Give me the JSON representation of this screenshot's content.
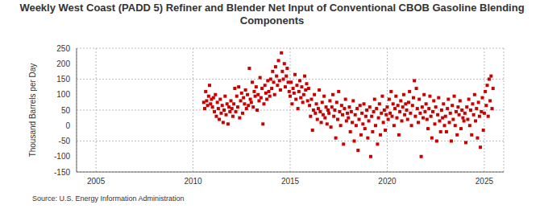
{
  "chart_data": {
    "type": "scatter",
    "title": "Weekly West Coast (PADD 5) Refiner and Blender Net Input of Conventional CBOB Gasoline Blending Components",
    "y_label": "Thousand Barrels per Day",
    "source": "Source: U.S. Energy Information Administration",
    "color": "#cc0000",
    "marker": "square",
    "grid": true,
    "xlim": [
      2004,
      2026
    ],
    "xticks": [
      2005,
      2010,
      2015,
      2020,
      2025
    ],
    "ylim": [
      -150,
      250
    ],
    "yticks": [
      -150,
      -100,
      -50,
      0,
      50,
      100,
      150,
      200,
      250
    ],
    "x": [
      2010.55,
      2010.6,
      2010.65,
      2010.7,
      2010.75,
      2010.8,
      2010.85,
      2010.9,
      2010.95,
      2011,
      2011.05,
      2011.1,
      2011.15,
      2011.2,
      2011.25,
      2011.3,
      2011.35,
      2011.4,
      2011.45,
      2011.5,
      2011.55,
      2011.6,
      2011.65,
      2011.7,
      2011.75,
      2011.8,
      2011.85,
      2011.9,
      2011.95,
      2012,
      2012.05,
      2012.1,
      2012.15,
      2012.2,
      2012.25,
      2012.3,
      2012.35,
      2012.4,
      2012.45,
      2012.5,
      2012.55,
      2012.6,
      2012.65,
      2012.7,
      2012.75,
      2012.8,
      2012.85,
      2012.9,
      2012.95,
      2013,
      2013.05,
      2013.1,
      2013.15,
      2013.2,
      2013.25,
      2013.3,
      2013.35,
      2013.4,
      2013.45,
      2013.5,
      2013.55,
      2013.6,
      2013.65,
      2013.7,
      2013.75,
      2013.8,
      2013.85,
      2013.9,
      2013.95,
      2014,
      2014.05,
      2014.1,
      2014.15,
      2014.2,
      2014.25,
      2014.3,
      2014.35,
      2014.4,
      2014.45,
      2014.5,
      2014.55,
      2014.6,
      2014.65,
      2014.7,
      2014.75,
      2014.8,
      2014.85,
      2014.9,
      2014.95,
      2015,
      2015.05,
      2015.1,
      2015.15,
      2015.2,
      2015.25,
      2015.3,
      2015.35,
      2015.4,
      2015.45,
      2015.5,
      2015.55,
      2015.6,
      2015.65,
      2015.7,
      2015.75,
      2015.8,
      2015.85,
      2015.9,
      2015.95,
      2016,
      2016.05,
      2016.1,
      2016.15,
      2016.2,
      2016.25,
      2016.3,
      2016.35,
      2016.4,
      2016.45,
      2016.5,
      2016.55,
      2016.6,
      2016.65,
      2016.7,
      2016.75,
      2016.8,
      2016.85,
      2016.9,
      2016.95,
      2017,
      2017.05,
      2017.1,
      2017.15,
      2017.2,
      2017.25,
      2017.3,
      2017.35,
      2017.4,
      2017.45,
      2017.5,
      2017.55,
      2017.6,
      2017.65,
      2017.7,
      2017.75,
      2017.8,
      2017.85,
      2017.9,
      2017.95,
      2018,
      2018.05,
      2018.1,
      2018.15,
      2018.2,
      2018.25,
      2018.3,
      2018.35,
      2018.4,
      2018.45,
      2018.5,
      2018.55,
      2018.6,
      2018.65,
      2018.7,
      2018.75,
      2018.8,
      2018.85,
      2018.9,
      2018.95,
      2019,
      2019.05,
      2019.1,
      2019.15,
      2019.2,
      2019.25,
      2019.3,
      2019.35,
      2019.4,
      2019.45,
      2019.5,
      2019.55,
      2019.6,
      2019.65,
      2019.7,
      2019.75,
      2019.8,
      2019.85,
      2019.9,
      2019.95,
      2020,
      2020.05,
      2020.1,
      2020.15,
      2020.2,
      2020.25,
      2020.3,
      2020.35,
      2020.4,
      2020.45,
      2020.5,
      2020.55,
      2020.6,
      2020.65,
      2020.7,
      2020.75,
      2020.8,
      2020.85,
      2020.9,
      2020.95,
      2021,
      2021.05,
      2021.1,
      2021.15,
      2021.2,
      2021.25,
      2021.3,
      2021.35,
      2021.4,
      2021.45,
      2021.5,
      2021.55,
      2021.6,
      2021.65,
      2021.7,
      2021.75,
      2021.8,
      2021.85,
      2021.9,
      2021.95,
      2022,
      2022.05,
      2022.1,
      2022.15,
      2022.2,
      2022.25,
      2022.3,
      2022.35,
      2022.4,
      2022.45,
      2022.5,
      2022.55,
      2022.6,
      2022.65,
      2022.7,
      2022.75,
      2022.8,
      2022.85,
      2022.9,
      2022.95,
      2023,
      2023.05,
      2023.1,
      2023.15,
      2023.2,
      2023.25,
      2023.3,
      2023.35,
      2023.4,
      2023.45,
      2023.5,
      2023.55,
      2023.6,
      2023.65,
      2023.7,
      2023.75,
      2023.8,
      2023.85,
      2023.9,
      2023.95,
      2024,
      2024.05,
      2024.1,
      2024.15,
      2024.2,
      2024.25,
      2024.3,
      2024.35,
      2024.4,
      2024.45,
      2024.5,
      2024.55,
      2024.6,
      2024.65,
      2024.7,
      2024.75,
      2024.8,
      2024.85,
      2024.9,
      2024.95,
      2025,
      2025.05,
      2025.1,
      2025.15,
      2025.2,
      2025.25,
      2025.3,
      2025.35,
      2025.4,
      2025.45
    ],
    "values": [
      75,
      55,
      110,
      80,
      65,
      95,
      130,
      70,
      85,
      60,
      90,
      45,
      100,
      30,
      75,
      55,
      20,
      85,
      40,
      65,
      10,
      50,
      95,
      35,
      70,
      5,
      60,
      45,
      80,
      55,
      30,
      70,
      120,
      45,
      95,
      60,
      125,
      25,
      80,
      105,
      40,
      90,
      70,
      115,
      55,
      100,
      65,
      185,
      85,
      75,
      140,
      60,
      110,
      95,
      125,
      50,
      100,
      80,
      155,
      90,
      120,
      5,
      70,
      130,
      105,
      85,
      145,
      110,
      95,
      150,
      120,
      175,
      140,
      100,
      190,
      160,
      130,
      210,
      145,
      115,
      235,
      175,
      150,
      200,
      125,
      160,
      185,
      140,
      110,
      95,
      140,
      70,
      120,
      105,
      165,
      85,
      130,
      55,
      110,
      145,
      90,
      125,
      75,
      100,
      160,
      115,
      135,
      80,
      120,
      65,
      30,
      85,
      -15,
      50,
      100,
      40,
      70,
      20,
      55,
      115,
      45,
      10,
      75,
      35,
      95,
      25,
      60,
      5,
      50,
      40,
      80,
      -5,
      60,
      100,
      30,
      50,
      -40,
      75,
      20,
      110,
      45,
      0,
      65,
      35,
      -60,
      55,
      85,
      15,
      40,
      25,
      60,
      -20,
      45,
      10,
      80,
      -50,
      35,
      0,
      55,
      -80,
      20,
      65,
      -30,
      40,
      5,
      70,
      -10,
      30,
      50,
      -40,
      15,
      60,
      -100,
      30,
      -20,
      45,
      85,
      0,
      55,
      -60,
      25,
      70,
      -30,
      40,
      95,
      10,
      50,
      -15,
      35,
      60,
      20,
      85,
      40,
      110,
      30,
      70,
      0,
      55,
      95,
      25,
      65,
      -30,
      45,
      80,
      15,
      60,
      100,
      35,
      70,
      50,
      20,
      75,
      110,
      40,
      0,
      65,
      90,
      145,
      30,
      120,
      55,
      10,
      85,
      40,
      -100,
      60,
      25,
      100,
      45,
      70,
      20,
      -10,
      55,
      95,
      30,
      -40,
      45,
      80,
      5,
      60,
      -50,
      35,
      90,
      15,
      -20,
      50,
      25,
      70,
      0,
      30,
      -20,
      55,
      85,
      10,
      40,
      -50,
      65,
      20,
      95,
      0,
      45,
      -30,
      60,
      35,
      80,
      -10,
      50,
      25,
      15,
      40,
      -55,
      60,
      20,
      85,
      0,
      50,
      -30,
      70,
      35,
      100,
      15,
      55,
      -40,
      75,
      30,
      -70,
      45,
      90,
      -15,
      40,
      110,
      65,
      130,
      30,
      150,
      80,
      160,
      55,
      120
    ]
  }
}
